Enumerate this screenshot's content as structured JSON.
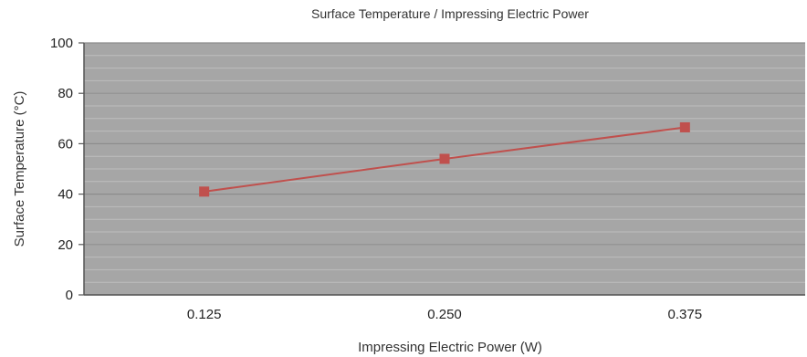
{
  "chart_data": {
    "type": "line",
    "title": "Surface Temperature / Impressing Electric Power",
    "xlabel": "Impressing Electric Power (W)",
    "ylabel": "Surface Temperature (°C)",
    "categories": [
      "0.125",
      "0.250",
      "0.375"
    ],
    "series": [
      {
        "values": [
          41,
          54,
          66.5
        ]
      }
    ],
    "ylim": [
      0,
      100
    ],
    "yticks": [
      0,
      20,
      40,
      60,
      80,
      100
    ],
    "grid": true,
    "colors": {
      "plot_background": "#a6a6a6",
      "major_grid": "#8c8c8c",
      "minor_grid": "#bdbdbd",
      "series_line": "#c0504d",
      "axis": "#555555"
    }
  }
}
